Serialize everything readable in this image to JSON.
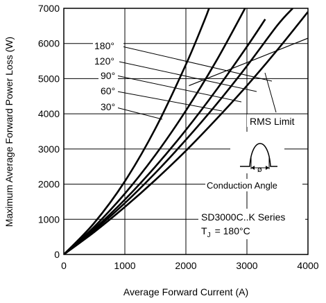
{
  "chart_data": {
    "type": "line",
    "xlabel": "Average Forward Current (A)",
    "ylabel": "Maximum Average Forward Power Loss (W)",
    "xlim": [
      0,
      4000
    ],
    "ylim": [
      0,
      7000
    ],
    "x_ticks": [
      "0",
      "1000",
      "2000",
      "3000",
      "4000"
    ],
    "y_ticks": [
      "0",
      "1000",
      "2000",
      "3000",
      "4000",
      "5000",
      "6000",
      "7000"
    ],
    "grid": true,
    "series": [
      {
        "name": "180°",
        "x": [
          0,
          500,
          1000,
          1500,
          2000,
          2500,
          3000,
          3500,
          4000
        ],
        "y": [
          0,
          640,
          1350,
          2120,
          2950,
          3850,
          4800,
          5820,
          6900
        ]
      },
      {
        "name": "120°",
        "x": [
          0,
          500,
          1000,
          1500,
          2000,
          2500,
          3000,
          3500,
          3750
        ],
        "y": [
          0,
          690,
          1460,
          2320,
          3260,
          4270,
          5360,
          6520,
          7000
        ]
      },
      {
        "name": "90°",
        "x": [
          0,
          500,
          1000,
          1500,
          2000,
          2500,
          3000,
          3300
        ],
        "y": [
          0,
          730,
          1560,
          2500,
          3540,
          4680,
          5910,
          6690
        ]
      },
      {
        "name": "60°",
        "x": [
          0,
          500,
          1000,
          1500,
          2000,
          2500,
          3000,
          3150
        ],
        "y": [
          0,
          790,
          1730,
          2830,
          4090,
          5510,
          7100,
          7600
        ]
      },
      {
        "name": "30°",
        "x": [
          0,
          500,
          1000,
          1500,
          2000,
          2300,
          2400
        ],
        "y": [
          0,
          900,
          2080,
          3580,
          5400,
          6640,
          7100
        ]
      }
    ],
    "rms_limit": {
      "label": "RMS Limit",
      "x": [
        2050,
        4000
      ],
      "y": [
        4800,
        6150
      ]
    },
    "legend_labels": [
      "180°",
      "120°",
      "90°",
      "60°",
      "30°"
    ],
    "annotations": {
      "rms": "RMS Limit",
      "conduction": "Conduction Angle",
      "series_title": "SD3000C..K Series",
      "tj_symbol": "T",
      "tj_sub": "J",
      "tj_value": "= 180°C"
    }
  }
}
